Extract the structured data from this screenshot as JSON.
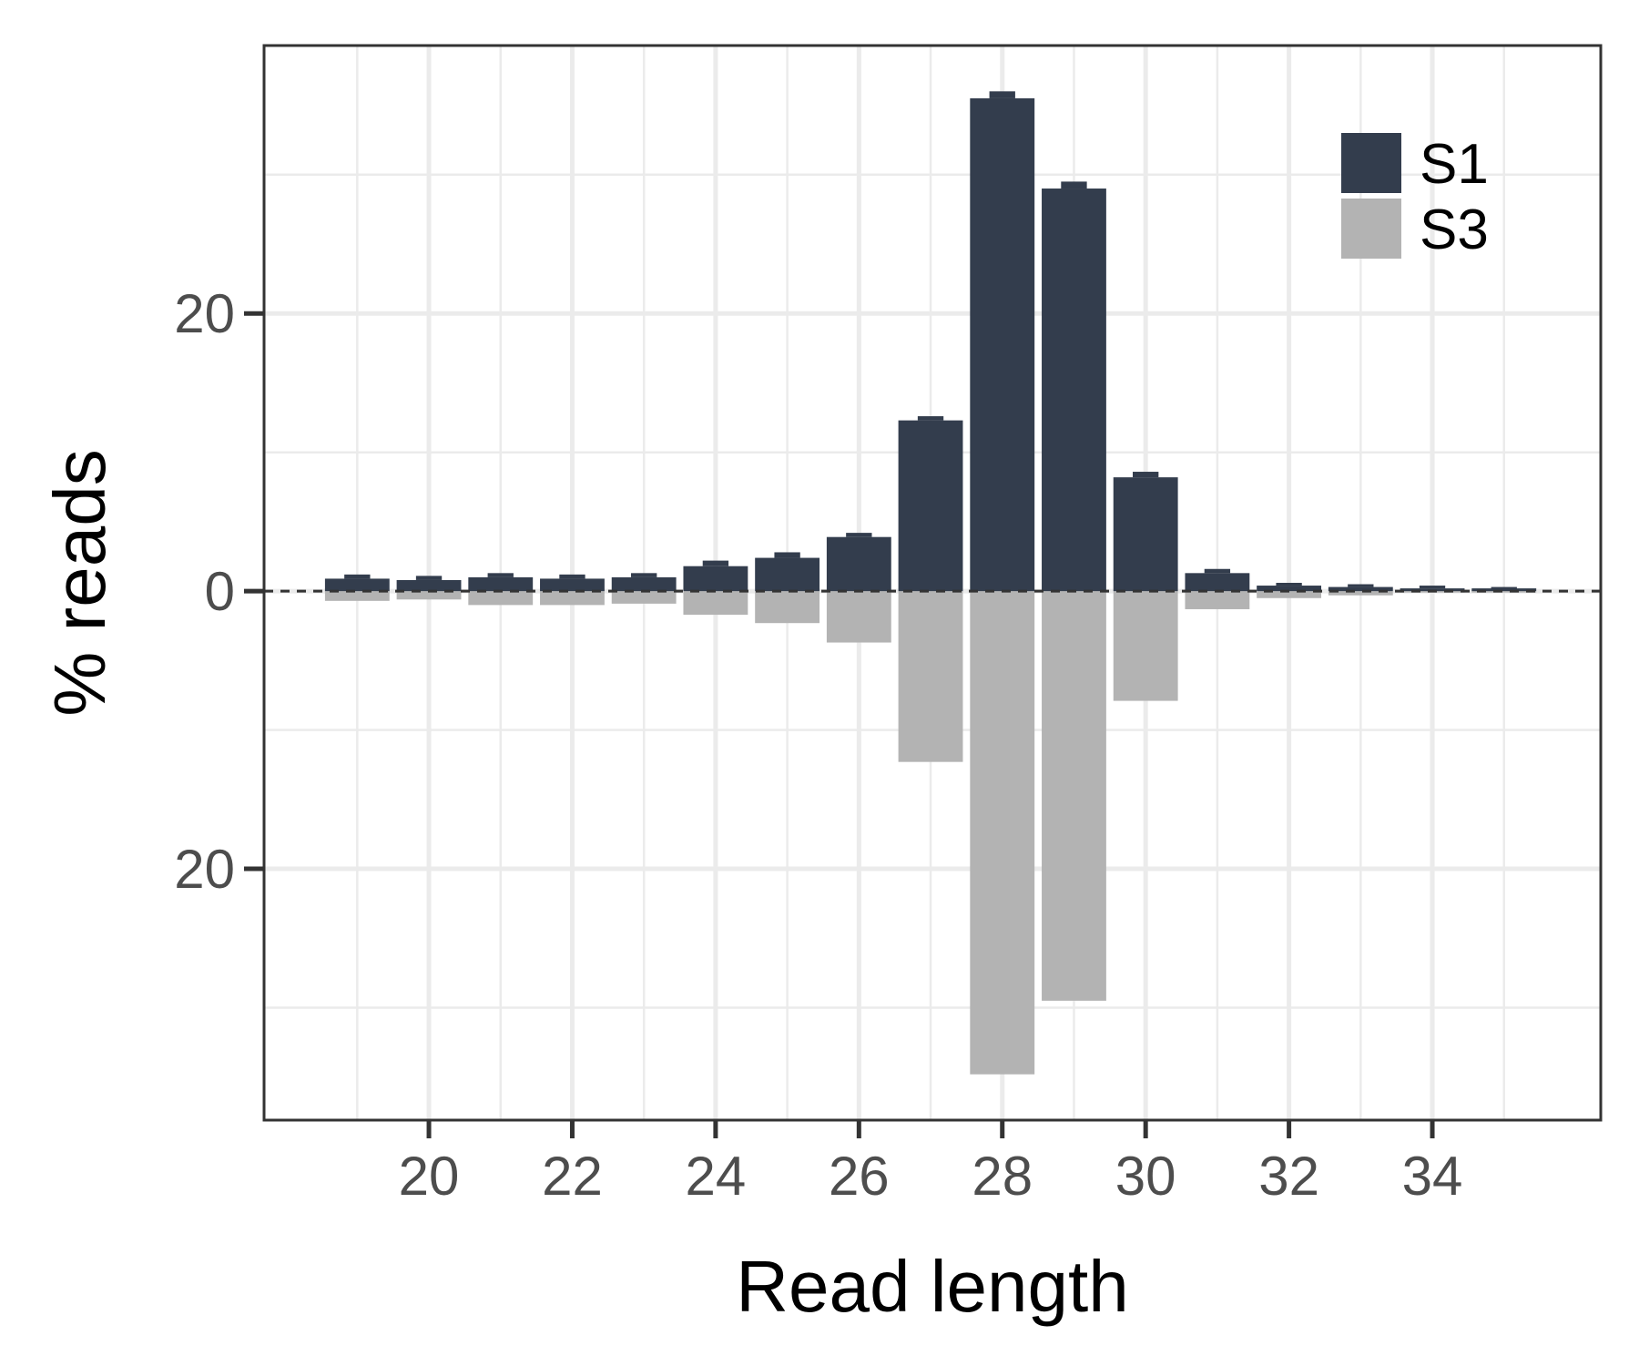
{
  "chart_data": {
    "type": "bar",
    "xlabel": "Read length",
    "ylabel": "% reads",
    "x_ticks": [
      20,
      22,
      24,
      26,
      28,
      30,
      32,
      34
    ],
    "y_ticks": [
      {
        "value": 20,
        "label": "20"
      },
      {
        "value": 0,
        "label": "0"
      },
      {
        "value": -20,
        "label": "20"
      }
    ],
    "xlim": [
      17.7,
      36.35
    ],
    "ylim": [
      -38.1,
      39.3
    ],
    "grid": true,
    "legend_position": "top-right",
    "categories": [
      19,
      20,
      21,
      22,
      23,
      24,
      25,
      26,
      27,
      28,
      29,
      30,
      31,
      32,
      33,
      34,
      35
    ],
    "series": [
      {
        "name": "S1",
        "color": "#333d4d",
        "direction": "up",
        "values": [
          0.9,
          0.8,
          1.0,
          0.9,
          1.0,
          1.8,
          2.4,
          3.9,
          12.3,
          35.5,
          29.0,
          8.2,
          1.3,
          0.4,
          0.3,
          0.2,
          0.2
        ],
        "error_upper": [
          1.2,
          1.1,
          1.3,
          1.2,
          1.3,
          2.2,
          2.8,
          4.2,
          12.6,
          36.0,
          29.5,
          8.6,
          1.6,
          0.6,
          0.5,
          0.4,
          0.3
        ]
      },
      {
        "name": "S3",
        "color": "#b3b3b3",
        "direction": "down",
        "values": [
          -0.7,
          -0.6,
          -1.0,
          -1.0,
          -0.9,
          -1.7,
          -2.3,
          -3.7,
          -12.3,
          -34.8,
          -29.5,
          -7.9,
          -1.3,
          -0.5,
          -0.3,
          -0.1,
          -0.1
        ]
      }
    ]
  }
}
